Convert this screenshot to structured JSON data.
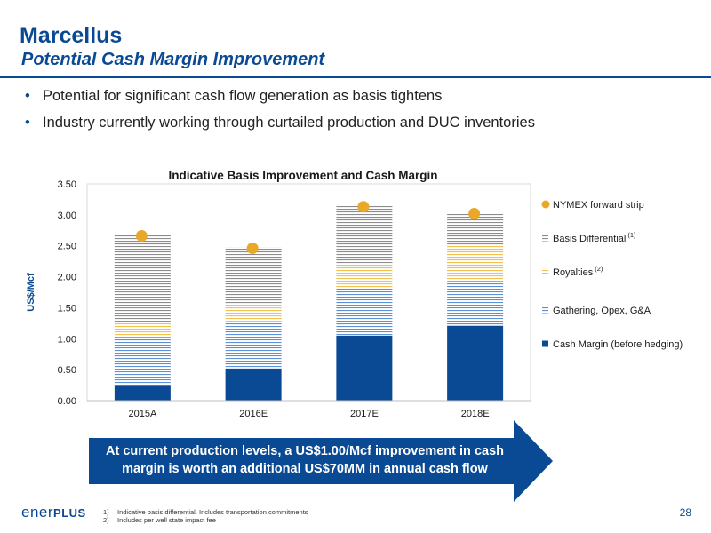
{
  "header": {
    "title": "Marcellus",
    "subtitle": "Potential Cash Margin Improvement"
  },
  "bullets": [
    "Potential for significant cash flow generation as basis tightens",
    "Industry currently working through curtailed production and DUC inventories"
  ],
  "chart_data": {
    "type": "bar",
    "stacked": true,
    "title": "Indicative Basis Improvement and Cash Margin",
    "ylabel": "US$/Mcf",
    "ylim": [
      0,
      3.5
    ],
    "yticks": [
      "0.00",
      "0.50",
      "1.00",
      "1.50",
      "2.00",
      "2.50",
      "3.00",
      "3.50"
    ],
    "categories": [
      "2015A",
      "2016E",
      "2017E",
      "2018E"
    ],
    "series": [
      {
        "name": "Cash Margin (before hedging)",
        "values": [
          0.25,
          0.52,
          1.05,
          1.21
        ],
        "color": "#0a4a94",
        "pattern": "solid"
      },
      {
        "name": "Gathering, Opex, G&A",
        "values": [
          0.78,
          0.75,
          0.76,
          0.72
        ],
        "color": "#5b8fd6",
        "pattern": "hlines"
      },
      {
        "name": "Royalties",
        "sup": "(2)",
        "values": [
          0.24,
          0.28,
          0.41,
          0.57
        ],
        "color": "#f3c04b",
        "pattern": "hlines"
      },
      {
        "name": "Basis Differential",
        "sup": "(1)",
        "values": [
          1.4,
          0.93,
          0.93,
          0.52
        ],
        "color": "#8c8c8c",
        "pattern": "hlines"
      }
    ],
    "markers": {
      "name": "NYMEX forward strip",
      "values": [
        2.66,
        2.46,
        3.13,
        3.02
      ],
      "color": "#e9a928"
    },
    "legend_position": "right",
    "legend_order": [
      "NYMEX forward strip",
      "Basis Differential",
      "Royalties",
      "Gathering, Opex, G&A",
      "Cash Margin (before hedging)"
    ]
  },
  "callout": {
    "line1": "At current production levels, a US$1.00/Mcf improvement in cash",
    "line2": "margin is worth an additional US$70MM in annual cash flow",
    "color": "#0a4a94"
  },
  "footer": {
    "logo_text": "ener",
    "logo_plus": "PLUS",
    "footnotes": [
      {
        "num": "1)",
        "text": "Indicative basis differential. Includes transportation commitments"
      },
      {
        "num": "2)",
        "text": "Includes per well state impact fee"
      }
    ],
    "page_number": "28"
  }
}
